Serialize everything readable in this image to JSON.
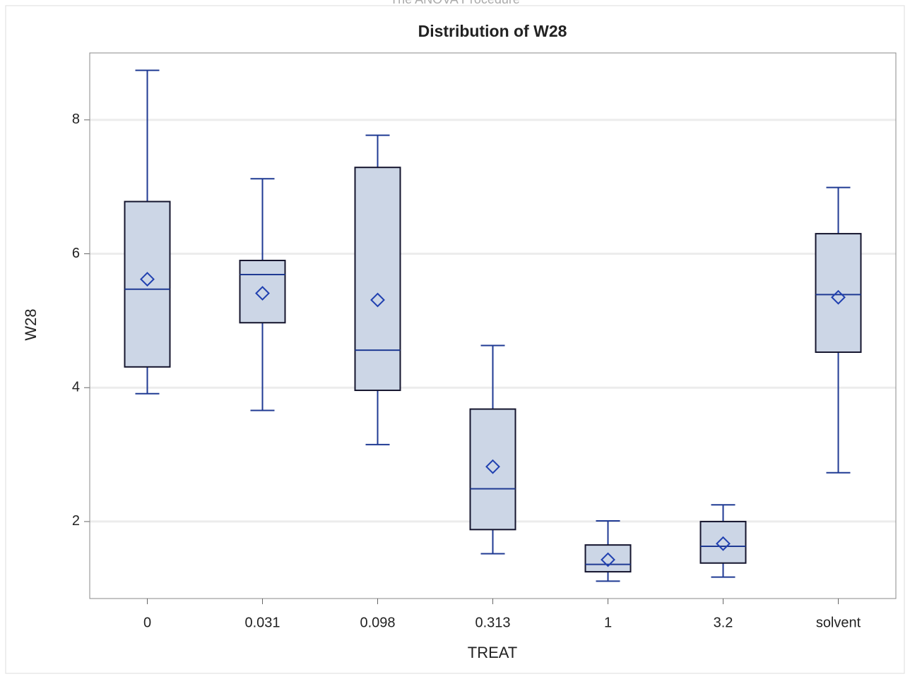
{
  "chart_data": {
    "type": "box",
    "header": "The ANOVA Procedure",
    "title": "Distribution of W28",
    "x_label": "TREAT",
    "y_label": "W28",
    "categories": [
      "0",
      "0.031",
      "0.098",
      "0.313",
      "1",
      "3.2",
      "solvent"
    ],
    "max": [
      8.74,
      7.12,
      7.77,
      4.63,
      2.01,
      2.25,
      6.99
    ],
    "q3": [
      6.78,
      5.9,
      7.29,
      3.68,
      1.65,
      2.0,
      6.3
    ],
    "median": [
      5.47,
      5.69,
      4.56,
      2.49,
      1.36,
      1.63,
      5.39
    ],
    "q1": [
      4.31,
      4.97,
      3.96,
      1.88,
      1.25,
      1.38,
      4.53
    ],
    "min": [
      3.91,
      3.66,
      3.15,
      1.52,
      1.11,
      1.17,
      2.73
    ],
    "mean": [
      5.62,
      5.41,
      5.31,
      2.82,
      1.43,
      1.67,
      5.35
    ],
    "color": "#ccd6e6",
    "ylim": [
      0.85,
      9.0
    ],
    "yticks": [
      2,
      4,
      6,
      8
    ],
    "grid": true
  }
}
